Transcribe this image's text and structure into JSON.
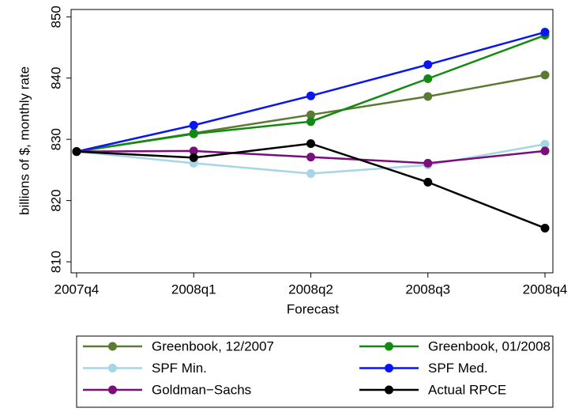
{
  "chart_data": {
    "type": "line",
    "x_label": "Forecast",
    "y_label": "billions of $, monthly rate",
    "categories": [
      "2007q4",
      "2008q1",
      "2008q2",
      "2008q3",
      "2008q4"
    ],
    "series": [
      {
        "name": "Greenbook, 12/2007",
        "color": "#5b7b34",
        "values": [
          828,
          831,
          834,
          837,
          840.5
        ]
      },
      {
        "name": "Greenbook, 01/2008",
        "color": "#118a11",
        "values": [
          828,
          830.9,
          832.9,
          839.9,
          847
        ]
      },
      {
        "name": "SPF Min.",
        "color": "#a6d5e6",
        "values": [
          828,
          826.1,
          824.4,
          825.8,
          829.2
        ]
      },
      {
        "name": "SPF Med.",
        "color": "#0a16f0",
        "values": [
          828,
          832.3,
          837.1,
          842.2,
          847.5
        ]
      },
      {
        "name": "Goldman−Sachs",
        "color": "#7a0f7a",
        "values": [
          828,
          828.1,
          827.1,
          826.1,
          828.1
        ]
      },
      {
        "name": "Actual RPCE",
        "color": "#000000",
        "values": [
          828,
          827,
          829.3,
          823,
          815.5
        ]
      }
    ],
    "ylim": [
      808.2,
      851.2
    ],
    "yticks": [
      810,
      820,
      830,
      840,
      850
    ],
    "grid": false
  }
}
